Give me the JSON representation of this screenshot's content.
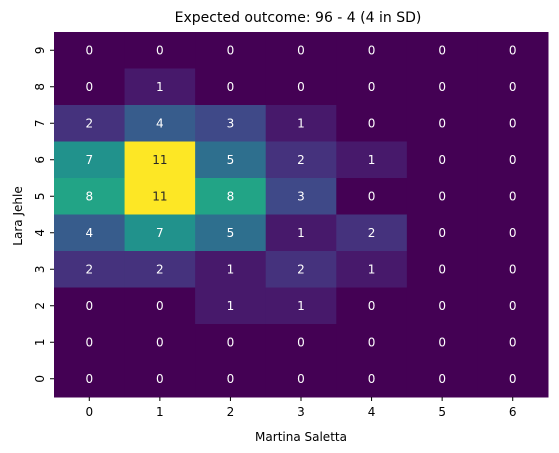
{
  "chart_data": {
    "type": "heatmap",
    "title": "Expected outcome: 96 - 4 (4 in SD)",
    "xlabel": "Martina Saletta",
    "ylabel": "Lara Jehle",
    "x_categories": [
      "0",
      "1",
      "2",
      "3",
      "4",
      "5",
      "6"
    ],
    "y_categories": [
      "9",
      "8",
      "7",
      "6",
      "5",
      "4",
      "3",
      "2",
      "1",
      "0"
    ],
    "values": [
      [
        0,
        0,
        0,
        0,
        0,
        0,
        0
      ],
      [
        0,
        1,
        0,
        0,
        0,
        0,
        0
      ],
      [
        2,
        4,
        3,
        1,
        0,
        0,
        0
      ],
      [
        7,
        11,
        5,
        2,
        1,
        0,
        0
      ],
      [
        8,
        11,
        8,
        3,
        0,
        0,
        0
      ],
      [
        4,
        7,
        5,
        1,
        2,
        0,
        0
      ],
      [
        2,
        2,
        1,
        2,
        1,
        0,
        0
      ],
      [
        0,
        0,
        1,
        1,
        0,
        0,
        0
      ],
      [
        0,
        0,
        0,
        0,
        0,
        0,
        0
      ],
      [
        0,
        0,
        0,
        0,
        0,
        0,
        0
      ]
    ],
    "vmin": 0,
    "vmax": 11,
    "colormap": "viridis",
    "grid": false,
    "annotated": true
  }
}
